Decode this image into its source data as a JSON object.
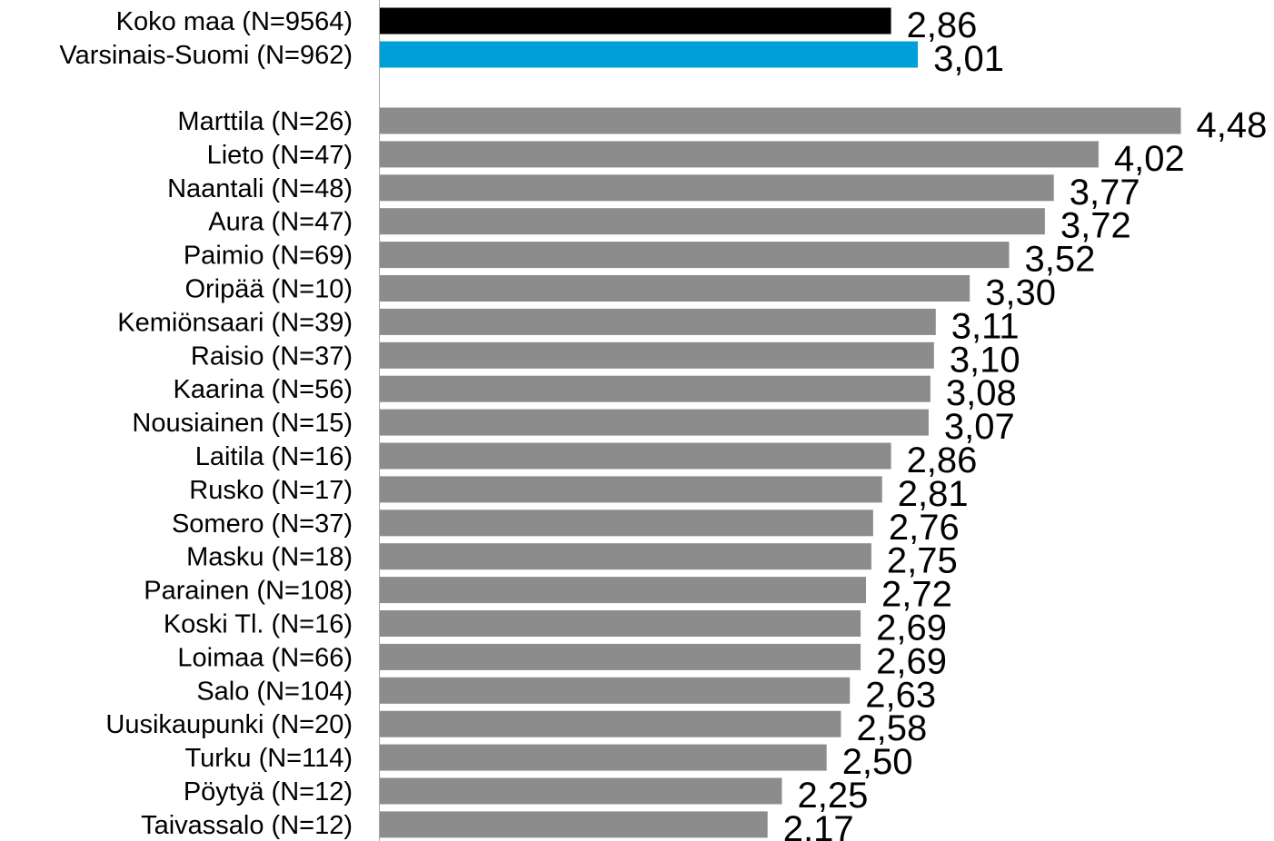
{
  "chart_data": {
    "type": "bar",
    "orientation": "horizontal",
    "title": "",
    "xlabel": "",
    "ylabel": "",
    "grid": false,
    "legend": "none",
    "xlim": [
      0,
      4.5
    ],
    "categories": [
      "Koko maa (N=9564)",
      "Varsinais-Suomi (N=962)",
      "Marttila (N=26)",
      "Lieto (N=47)",
      "Naantali (N=48)",
      "Aura (N=47)",
      "Paimio (N=69)",
      "Oripää (N=10)",
      "Kemiönsaari (N=39)",
      "Raisio (N=37)",
      "Kaarina (N=56)",
      "Nousiainen (N=15)",
      "Laitila (N=16)",
      "Rusko (N=17)",
      "Somero (N=37)",
      "Masku (N=18)",
      "Parainen (N=108)",
      "Koski Tl. (N=16)",
      "Loimaa (N=66)",
      "Salo (N=104)",
      "Uusikaupunki (N=20)",
      "Turku (N=114)",
      "Pöytyä (N=12)",
      "Taivassalo (N=12)"
    ],
    "values": [
      2.86,
      3.01,
      4.48,
      4.02,
      3.77,
      3.72,
      3.52,
      3.3,
      3.11,
      3.1,
      3.08,
      3.07,
      2.86,
      2.81,
      2.76,
      2.75,
      2.72,
      2.69,
      2.69,
      2.63,
      2.58,
      2.5,
      2.25,
      2.17
    ],
    "value_labels": [
      "2,86",
      "3,01",
      "4,48",
      "4,02",
      "3,77",
      "3,72",
      "3,52",
      "3,30",
      "3,11",
      "3,10",
      "3,08",
      "3,07",
      "2,86",
      "2,81",
      "2,76",
      "2,75",
      "2,72",
      "2,69",
      "2,69",
      "2,63",
      "2,58",
      "2,50",
      "2,25",
      "2,17"
    ],
    "bar_colors": [
      "#000000",
      "#009fda",
      "#8c8c8c",
      "#8c8c8c",
      "#8c8c8c",
      "#8c8c8c",
      "#8c8c8c",
      "#8c8c8c",
      "#8c8c8c",
      "#8c8c8c",
      "#8c8c8c",
      "#8c8c8c",
      "#8c8c8c",
      "#8c8c8c",
      "#8c8c8c",
      "#8c8c8c",
      "#8c8c8c",
      "#8c8c8c",
      "#8c8c8c",
      "#8c8c8c",
      "#8c8c8c",
      "#8c8c8c",
      "#8c8c8c",
      "#8c8c8c"
    ],
    "axis_color": "#a6a6a6"
  }
}
